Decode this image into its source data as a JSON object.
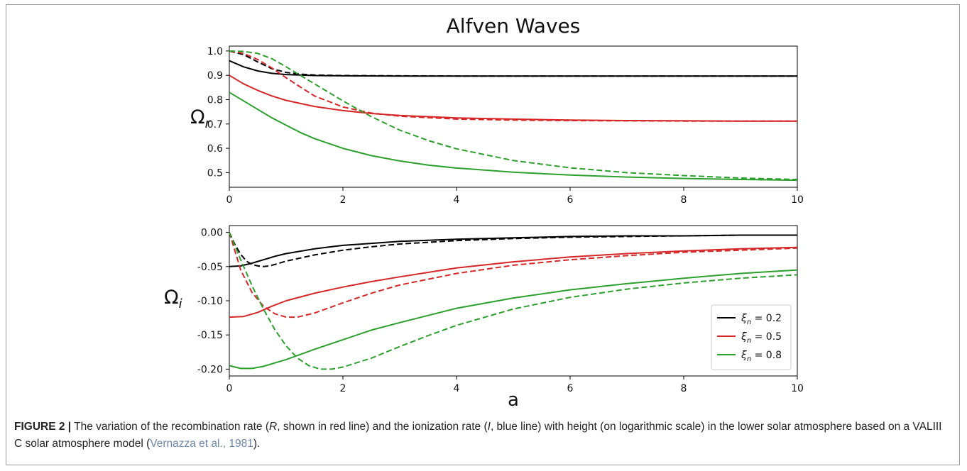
{
  "chart_data": [
    {
      "type": "line",
      "title": "Alfven Waves",
      "xlabel": "",
      "ylabel": "Ω_r",
      "ylabel_main": "Ω",
      "ylabel_sub": "r",
      "xlim": [
        0,
        10
      ],
      "ylim": [
        0.44,
        1.02
      ],
      "xticks": [
        0,
        2,
        4,
        6,
        8,
        10
      ],
      "yticks": [
        0.5,
        0.6,
        0.7,
        0.8,
        0.9,
        1.0
      ],
      "xtick_labels": [
        "0",
        "2",
        "4",
        "6",
        "8",
        "10"
      ],
      "ytick_labels": [
        "0.5",
        "0.6",
        "0.7",
        "0.8",
        "0.9",
        "1.0"
      ],
      "grid": false,
      "series": [
        {
          "color": "#000000",
          "dash": false,
          "x": [
            0,
            0.25,
            0.5,
            0.75,
            1,
            1.5,
            2,
            3,
            4,
            6,
            8,
            10
          ],
          "y": [
            0.96,
            0.935,
            0.918,
            0.908,
            0.903,
            0.899,
            0.898,
            0.897,
            0.897,
            0.897,
            0.897,
            0.897
          ]
        },
        {
          "color": "#000000",
          "dash": true,
          "x": [
            0,
            0.25,
            0.5,
            0.75,
            1,
            1.25,
            1.5,
            2,
            3,
            4,
            6,
            8,
            10
          ],
          "y": [
            1.0,
            0.985,
            0.955,
            0.927,
            0.912,
            0.905,
            0.901,
            0.899,
            0.898,
            0.897,
            0.897,
            0.897,
            0.897
          ]
        },
        {
          "color": "#d62728",
          "dash": false,
          "x": [
            0,
            0.25,
            0.5,
            0.75,
            1,
            1.5,
            2,
            2.5,
            3,
            4,
            5,
            6,
            7,
            8,
            9,
            10
          ],
          "y": [
            0.9,
            0.865,
            0.838,
            0.815,
            0.797,
            0.772,
            0.755,
            0.743,
            0.735,
            0.725,
            0.72,
            0.716,
            0.714,
            0.713,
            0.712,
            0.712
          ]
        },
        {
          "color": "#d62728",
          "dash": true,
          "x": [
            0,
            0.25,
            0.5,
            0.75,
            1,
            1.25,
            1.5,
            2,
            2.5,
            3,
            4,
            5,
            6,
            8,
            10
          ],
          "y": [
            1.0,
            0.99,
            0.965,
            0.93,
            0.89,
            0.852,
            0.815,
            0.77,
            0.745,
            0.732,
            0.72,
            0.716,
            0.714,
            0.712,
            0.712
          ]
        },
        {
          "color": "#2ca02c",
          "dash": false,
          "x": [
            0,
            0.25,
            0.5,
            0.75,
            1,
            1.25,
            1.5,
            2,
            2.5,
            3,
            3.5,
            4,
            5,
            6,
            7,
            8,
            9,
            10
          ],
          "y": [
            0.83,
            0.795,
            0.76,
            0.725,
            0.695,
            0.665,
            0.64,
            0.6,
            0.57,
            0.548,
            0.531,
            0.519,
            0.502,
            0.49,
            0.482,
            0.476,
            0.472,
            0.469
          ]
        },
        {
          "color": "#2ca02c",
          "dash": true,
          "x": [
            0,
            0.25,
            0.5,
            0.75,
            1,
            1.25,
            1.5,
            1.75,
            2,
            2.5,
            3,
            3.5,
            4,
            5,
            6,
            7,
            8,
            9,
            10
          ],
          "y": [
            1.0,
            0.998,
            0.99,
            0.968,
            0.935,
            0.9,
            0.865,
            0.83,
            0.795,
            0.73,
            0.675,
            0.632,
            0.598,
            0.55,
            0.52,
            0.5,
            0.488,
            0.478,
            0.472
          ]
        }
      ]
    },
    {
      "type": "line",
      "title": "",
      "xlabel": "a",
      "ylabel": "Ω_i",
      "ylabel_main": "Ω",
      "ylabel_sub": "i",
      "xlim": [
        0,
        10
      ],
      "ylim": [
        -0.21,
        0.01
      ],
      "xticks": [
        0,
        2,
        4,
        6,
        8,
        10
      ],
      "yticks": [
        0.0,
        -0.05,
        -0.1,
        -0.15,
        -0.2
      ],
      "xtick_labels": [
        "0",
        "2",
        "4",
        "6",
        "8",
        "10"
      ],
      "ytick_labels": [
        "0.00",
        "-0.05",
        "-0.10",
        "-0.15",
        "-0.20"
      ],
      "grid": false,
      "legend": {
        "placement": "lower-right",
        "entries": [
          {
            "label_main": "ξ",
            "label_sub": "n",
            "label_rest": " = 0.2",
            "color": "#000000"
          },
          {
            "label_main": "ξ",
            "label_sub": "n",
            "label_rest": " = 0.5",
            "color": "#d62728"
          },
          {
            "label_main": "ξ",
            "label_sub": "n",
            "label_rest": " = 0.8",
            "color": "#2ca02c"
          }
        ]
      },
      "series": [
        {
          "color": "#000000",
          "dash": false,
          "x": [
            0,
            0.2,
            0.4,
            0.6,
            0.8,
            1,
            1.5,
            2,
            2.5,
            3,
            4,
            5,
            6,
            7,
            8,
            9,
            10
          ],
          "y": [
            -0.05,
            -0.049,
            -0.045,
            -0.04,
            -0.035,
            -0.031,
            -0.024,
            -0.019,
            -0.016,
            -0.013,
            -0.01,
            -0.008,
            -0.006,
            -0.005,
            -0.005,
            -0.004,
            -0.004
          ]
        },
        {
          "color": "#000000",
          "dash": true,
          "x": [
            0,
            0.1,
            0.2,
            0.3,
            0.4,
            0.5,
            0.6,
            0.7,
            0.8,
            1,
            1.5,
            2,
            2.5,
            3,
            4,
            5,
            6,
            7,
            8,
            9,
            10
          ],
          "y": [
            0,
            -0.018,
            -0.032,
            -0.042,
            -0.047,
            -0.049,
            -0.05,
            -0.049,
            -0.047,
            -0.042,
            -0.033,
            -0.026,
            -0.021,
            -0.017,
            -0.012,
            -0.009,
            -0.007,
            -0.006,
            -0.005,
            -0.004,
            -0.004
          ]
        },
        {
          "color": "#d62728",
          "dash": false,
          "x": [
            0,
            0.25,
            0.5,
            0.75,
            1,
            1.5,
            2,
            2.5,
            3,
            4,
            5,
            6,
            7,
            8,
            9,
            10
          ],
          "y": [
            -0.124,
            -0.123,
            -0.117,
            -0.108,
            -0.1,
            -0.089,
            -0.08,
            -0.072,
            -0.065,
            -0.052,
            -0.043,
            -0.036,
            -0.031,
            -0.027,
            -0.024,
            -0.022
          ]
        },
        {
          "color": "#d62728",
          "dash": true,
          "x": [
            0,
            0.2,
            0.4,
            0.6,
            0.8,
            1,
            1.2,
            1.5,
            2,
            2.5,
            3,
            4,
            5,
            6,
            7,
            8,
            9,
            10
          ],
          "y": [
            0,
            -0.055,
            -0.088,
            -0.108,
            -0.119,
            -0.124,
            -0.124,
            -0.118,
            -0.103,
            -0.089,
            -0.077,
            -0.06,
            -0.048,
            -0.04,
            -0.034,
            -0.029,
            -0.026,
            -0.023
          ]
        },
        {
          "color": "#2ca02c",
          "dash": false,
          "x": [
            0,
            0.2,
            0.4,
            0.6,
            0.8,
            1,
            1.5,
            2,
            2.5,
            3,
            4,
            5,
            6,
            7,
            8,
            9,
            10
          ],
          "y": [
            -0.195,
            -0.199,
            -0.199,
            -0.196,
            -0.191,
            -0.186,
            -0.171,
            -0.157,
            -0.143,
            -0.132,
            -0.111,
            -0.096,
            -0.084,
            -0.075,
            -0.067,
            -0.06,
            -0.055
          ]
        },
        {
          "color": "#2ca02c",
          "dash": true,
          "x": [
            0,
            0.2,
            0.4,
            0.6,
            0.8,
            1,
            1.2,
            1.4,
            1.6,
            1.8,
            2,
            2.5,
            3,
            3.5,
            4,
            5,
            6,
            7,
            8,
            9,
            10
          ],
          "y": [
            0,
            -0.04,
            -0.078,
            -0.112,
            -0.142,
            -0.166,
            -0.184,
            -0.195,
            -0.2,
            -0.2,
            -0.197,
            -0.184,
            -0.167,
            -0.151,
            -0.136,
            -0.112,
            -0.095,
            -0.083,
            -0.074,
            -0.067,
            -0.062
          ]
        }
      ]
    }
  ],
  "caption": {
    "lead": "FIGURE 2 |",
    "text_before": " The variation of the recombination rate (",
    "r_symbol": "R",
    "text_middle": ", shown in red line) and the ionization rate (",
    "i_symbol": "I",
    "text_after_i": ", blue line) with height (on logarithmic scale) in the lower solar atmosphere based on a VALIII C solar atmosphere model (",
    "citation": "Vernazza et al., 1981",
    "text_end": ")."
  }
}
